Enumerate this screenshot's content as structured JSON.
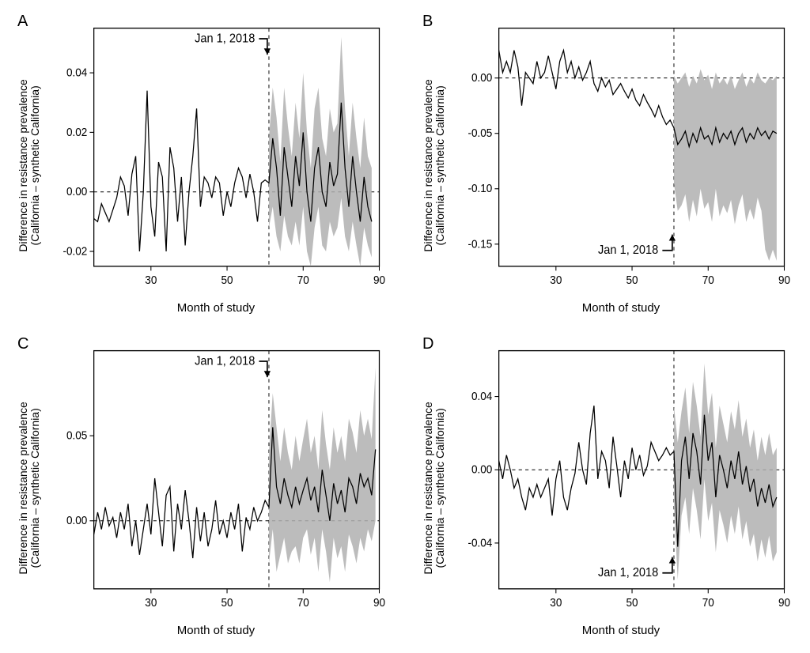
{
  "figure": {
    "background_color": "#ffffff",
    "panel_border_color": "#000000",
    "grid_dash": "4,4",
    "line_color": "#000000",
    "line_width": 1.2,
    "ci_fill": "#b0b0b0",
    "ci_opacity": 0.85,
    "vline_x": 61,
    "axis_fontsize": 13,
    "label_fontsize": 15,
    "panel_letter_fontsize": 20,
    "xlabel": "Month of study",
    "ylabel_line1": "Difference in resistance prevalence",
    "ylabel_line2": "(California – synthetic California)",
    "annotation_text": "Jan 1, 2018",
    "xlim": [
      15,
      90
    ],
    "xticks": [
      30,
      50,
      70,
      90
    ]
  },
  "panels": [
    {
      "letter": "A",
      "ylim": [
        -0.025,
        0.055
      ],
      "yticks": [
        -0.02,
        0.0,
        0.02,
        0.04
      ],
      "ytick_labels": [
        "-0.02",
        "0.00",
        "0.02",
        "0.04"
      ],
      "annotation_pos": "top",
      "line_x": [
        15,
        16,
        17,
        18,
        19,
        20,
        21,
        22,
        23,
        24,
        25,
        26,
        27,
        28,
        29,
        30,
        31,
        32,
        33,
        34,
        35,
        36,
        37,
        38,
        39,
        40,
        41,
        42,
        43,
        44,
        45,
        46,
        47,
        48,
        49,
        50,
        51,
        52,
        53,
        54,
        55,
        56,
        57,
        58,
        59,
        60,
        61,
        62,
        63,
        64,
        65,
        66,
        67,
        68,
        69,
        70,
        71,
        72,
        73,
        74,
        75,
        76,
        77,
        78,
        79,
        80,
        81,
        82,
        83,
        84,
        85,
        86,
        87,
        88
      ],
      "line_y": [
        -0.009,
        -0.01,
        -0.004,
        -0.007,
        -0.01,
        -0.006,
        -0.002,
        0.005,
        0.002,
        -0.008,
        0.006,
        0.012,
        -0.02,
        0.0,
        0.034,
        -0.005,
        -0.015,
        0.01,
        0.005,
        -0.02,
        0.015,
        0.008,
        -0.01,
        0.005,
        -0.018,
        0.0,
        0.012,
        0.028,
        -0.005,
        0.005,
        0.003,
        -0.002,
        0.005,
        0.003,
        -0.008,
        0.0,
        -0.005,
        0.003,
        0.008,
        0.005,
        -0.002,
        0.006,
        0.0,
        -0.01,
        0.003,
        0.004,
        0.003,
        0.018,
        0.008,
        -0.008,
        0.015,
        0.005,
        -0.005,
        0.012,
        0.002,
        0.02,
        0.0,
        -0.01,
        0.008,
        0.015,
        0.0,
        -0.005,
        0.01,
        0.002,
        0.006,
        0.03,
        0.008,
        -0.005,
        0.012,
        0.0,
        -0.01,
        0.005,
        -0.005,
        -0.01
      ],
      "ci_x": [
        61,
        62,
        63,
        64,
        65,
        66,
        67,
        68,
        69,
        70,
        71,
        72,
        73,
        74,
        75,
        76,
        77,
        78,
        79,
        80,
        81,
        82,
        83,
        84,
        85,
        86,
        87,
        88
      ],
      "ci_lo": [
        -0.012,
        -0.005,
        -0.015,
        -0.02,
        -0.008,
        -0.015,
        -0.018,
        -0.01,
        -0.018,
        -0.005,
        -0.02,
        -0.025,
        -0.012,
        -0.005,
        -0.018,
        -0.02,
        -0.01,
        -0.015,
        -0.012,
        -0.002,
        -0.015,
        -0.02,
        -0.01,
        -0.018,
        -0.025,
        -0.012,
        -0.018,
        -0.022
      ],
      "ci_hi": [
        0.018,
        0.035,
        0.025,
        0.01,
        0.035,
        0.022,
        0.012,
        0.03,
        0.018,
        0.04,
        0.02,
        0.008,
        0.028,
        0.035,
        0.018,
        0.012,
        0.028,
        0.02,
        0.023,
        0.052,
        0.028,
        0.012,
        0.03,
        0.018,
        0.008,
        0.025,
        0.012,
        0.008
      ]
    },
    {
      "letter": "B",
      "ylim": [
        -0.17,
        0.045
      ],
      "yticks": [
        -0.15,
        -0.1,
        -0.05,
        0.0
      ],
      "ytick_labels": [
        "-0.15",
        "-0.10",
        "-0.05",
        "0.00"
      ],
      "annotation_pos": "bottom",
      "line_x": [
        15,
        16,
        17,
        18,
        19,
        20,
        21,
        22,
        23,
        24,
        25,
        26,
        27,
        28,
        29,
        30,
        31,
        32,
        33,
        34,
        35,
        36,
        37,
        38,
        39,
        40,
        41,
        42,
        43,
        44,
        45,
        46,
        47,
        48,
        49,
        50,
        51,
        52,
        53,
        54,
        55,
        56,
        57,
        58,
        59,
        60,
        61,
        62,
        63,
        64,
        65,
        66,
        67,
        68,
        69,
        70,
        71,
        72,
        73,
        74,
        75,
        76,
        77,
        78,
        79,
        80,
        81,
        82,
        83,
        84,
        85,
        86,
        87,
        88
      ],
      "line_y": [
        0.025,
        0.005,
        0.015,
        0.005,
        0.025,
        0.01,
        -0.025,
        0.005,
        0.0,
        -0.005,
        0.015,
        0.0,
        0.005,
        0.02,
        0.005,
        -0.01,
        0.015,
        0.025,
        0.005,
        0.015,
        0.0,
        0.01,
        -0.002,
        0.005,
        0.015,
        -0.005,
        -0.012,
        0.0,
        -0.008,
        -0.002,
        -0.015,
        -0.01,
        -0.005,
        -0.012,
        -0.018,
        -0.01,
        -0.02,
        -0.025,
        -0.015,
        -0.022,
        -0.028,
        -0.035,
        -0.025,
        -0.035,
        -0.042,
        -0.038,
        -0.045,
        -0.06,
        -0.055,
        -0.048,
        -0.062,
        -0.05,
        -0.058,
        -0.045,
        -0.055,
        -0.052,
        -0.06,
        -0.045,
        -0.058,
        -0.05,
        -0.055,
        -0.048,
        -0.06,
        -0.05,
        -0.045,
        -0.058,
        -0.05,
        -0.055,
        -0.045,
        -0.052,
        -0.048,
        -0.055,
        -0.048,
        -0.05
      ],
      "ci_x": [
        61,
        62,
        63,
        64,
        65,
        66,
        67,
        68,
        69,
        70,
        71,
        72,
        73,
        74,
        75,
        76,
        77,
        78,
        79,
        80,
        81,
        82,
        83,
        84,
        85,
        86,
        87,
        88
      ],
      "ci_lo": [
        -0.095,
        -0.12,
        -0.115,
        -0.105,
        -0.13,
        -0.11,
        -0.125,
        -0.1,
        -0.118,
        -0.112,
        -0.13,
        -0.1,
        -0.125,
        -0.115,
        -0.122,
        -0.11,
        -0.132,
        -0.115,
        -0.105,
        -0.13,
        -0.118,
        -0.128,
        -0.108,
        -0.12,
        -0.155,
        -0.165,
        -0.155,
        -0.165
      ],
      "ci_hi": [
        0.002,
        -0.005,
        0.0,
        0.005,
        -0.008,
        0.002,
        -0.005,
        0.008,
        -0.002,
        0.003,
        -0.01,
        0.005,
        -0.005,
        0.0,
        -0.006,
        0.002,
        -0.01,
        -0.002,
        0.005,
        -0.008,
        0.0,
        -0.005,
        0.005,
        -0.002,
        -0.005,
        0.0,
        -0.002,
        0.002
      ]
    },
    {
      "letter": "C",
      "ylim": [
        -0.04,
        0.1
      ],
      "yticks": [
        0.0,
        0.05
      ],
      "ytick_labels": [
        "0.00",
        "0.05"
      ],
      "annotation_pos": "top",
      "line_x": [
        15,
        16,
        17,
        18,
        19,
        20,
        21,
        22,
        23,
        24,
        25,
        26,
        27,
        28,
        29,
        30,
        31,
        32,
        33,
        34,
        35,
        36,
        37,
        38,
        39,
        40,
        41,
        42,
        43,
        44,
        45,
        46,
        47,
        48,
        49,
        50,
        51,
        52,
        53,
        54,
        55,
        56,
        57,
        58,
        59,
        60,
        61,
        62,
        63,
        64,
        65,
        66,
        67,
        68,
        69,
        70,
        71,
        72,
        73,
        74,
        75,
        76,
        77,
        78,
        79,
        80,
        81,
        82,
        83,
        84,
        85,
        86,
        87,
        88,
        89
      ],
      "line_y": [
        -0.008,
        0.005,
        -0.005,
        0.008,
        -0.003,
        0.002,
        -0.01,
        0.005,
        -0.005,
        0.01,
        -0.015,
        0.0,
        -0.02,
        -0.005,
        0.01,
        -0.008,
        0.025,
        0.005,
        -0.015,
        0.015,
        0.02,
        -0.018,
        0.01,
        -0.005,
        0.018,
        0.0,
        -0.022,
        0.008,
        -0.012,
        0.005,
        -0.015,
        -0.005,
        0.012,
        -0.008,
        0.0,
        -0.01,
        0.005,
        -0.005,
        0.01,
        -0.018,
        0.002,
        -0.005,
        0.008,
        0.0,
        0.005,
        0.012,
        0.008,
        0.055,
        0.02,
        0.01,
        0.025,
        0.015,
        0.008,
        0.02,
        0.01,
        0.018,
        0.025,
        0.012,
        0.02,
        0.005,
        0.03,
        0.015,
        0.0,
        0.022,
        0.01,
        0.018,
        0.005,
        0.025,
        0.02,
        0.01,
        0.028,
        0.02,
        0.025,
        0.015,
        0.042
      ],
      "ci_x": [
        61,
        62,
        63,
        64,
        65,
        66,
        67,
        68,
        69,
        70,
        71,
        72,
        73,
        74,
        75,
        76,
        77,
        78,
        79,
        80,
        81,
        82,
        83,
        84,
        85,
        86,
        87,
        88,
        89
      ],
      "ci_lo": [
        -0.025,
        -0.005,
        -0.03,
        -0.02,
        -0.01,
        -0.025,
        -0.018,
        -0.015,
        -0.025,
        -0.01,
        -0.005,
        -0.02,
        -0.01,
        -0.03,
        -0.005,
        -0.018,
        -0.036,
        -0.01,
        -0.022,
        -0.015,
        -0.03,
        -0.008,
        -0.015,
        -0.025,
        -0.01,
        -0.018,
        -0.005,
        -0.012,
        0.0
      ],
      "ci_hi": [
        0.04,
        0.075,
        0.055,
        0.035,
        0.055,
        0.04,
        0.03,
        0.05,
        0.035,
        0.048,
        0.06,
        0.04,
        0.05,
        0.03,
        0.065,
        0.045,
        0.03,
        0.055,
        0.04,
        0.05,
        0.035,
        0.06,
        0.052,
        0.04,
        0.065,
        0.05,
        0.06,
        0.048,
        0.09
      ]
    },
    {
      "letter": "D",
      "ylim": [
        -0.065,
        0.065
      ],
      "yticks": [
        -0.04,
        0.0,
        0.04
      ],
      "ytick_labels": [
        "-0.04",
        "0.00",
        "0.04"
      ],
      "annotation_pos": "bottom",
      "line_x": [
        15,
        16,
        17,
        18,
        19,
        20,
        21,
        22,
        23,
        24,
        25,
        26,
        27,
        28,
        29,
        30,
        31,
        32,
        33,
        34,
        35,
        36,
        37,
        38,
        39,
        40,
        41,
        42,
        43,
        44,
        45,
        46,
        47,
        48,
        49,
        50,
        51,
        52,
        53,
        54,
        55,
        56,
        57,
        58,
        59,
        60,
        61,
        62,
        63,
        64,
        65,
        66,
        67,
        68,
        69,
        70,
        71,
        72,
        73,
        74,
        75,
        76,
        77,
        78,
        79,
        80,
        81,
        82,
        83,
        84,
        85,
        86,
        87,
        88
      ],
      "line_y": [
        0.005,
        -0.005,
        0.008,
        0.0,
        -0.01,
        -0.005,
        -0.015,
        -0.022,
        -0.01,
        -0.015,
        -0.008,
        -0.015,
        -0.01,
        -0.005,
        -0.025,
        -0.005,
        0.005,
        -0.015,
        -0.022,
        -0.01,
        -0.002,
        0.015,
        0.0,
        -0.008,
        0.02,
        0.035,
        -0.005,
        0.01,
        0.005,
        -0.01,
        0.018,
        0.002,
        -0.015,
        0.005,
        -0.005,
        0.012,
        0.0,
        0.008,
        -0.003,
        0.002,
        0.015,
        0.01,
        0.005,
        0.008,
        0.012,
        0.008,
        0.01,
        -0.042,
        0.005,
        0.018,
        -0.005,
        0.02,
        0.01,
        -0.008,
        0.03,
        0.005,
        0.015,
        -0.015,
        0.008,
        0.0,
        -0.01,
        0.005,
        -0.005,
        0.01,
        -0.008,
        0.002,
        -0.012,
        -0.005,
        -0.02,
        -0.01,
        -0.018,
        -0.008,
        -0.02,
        -0.015
      ],
      "ci_x": [
        61,
        62,
        63,
        64,
        65,
        66,
        67,
        68,
        69,
        70,
        71,
        72,
        73,
        74,
        75,
        76,
        77,
        78,
        79,
        80,
        81,
        82,
        83,
        84,
        85,
        86,
        87,
        88
      ],
      "ci_lo": [
        -0.02,
        -0.06,
        -0.025,
        -0.015,
        -0.035,
        -0.01,
        -0.022,
        -0.038,
        -0.005,
        -0.028,
        -0.018,
        -0.045,
        -0.022,
        -0.03,
        -0.04,
        -0.025,
        -0.035,
        -0.02,
        -0.038,
        -0.028,
        -0.042,
        -0.035,
        -0.05,
        -0.038,
        -0.048,
        -0.036,
        -0.05,
        -0.045
      ],
      "ci_hi": [
        0.035,
        0.015,
        0.032,
        0.045,
        0.02,
        0.048,
        0.035,
        0.018,
        0.058,
        0.03,
        0.042,
        0.012,
        0.035,
        0.025,
        0.015,
        0.032,
        0.022,
        0.038,
        0.018,
        0.028,
        0.012,
        0.022,
        0.005,
        0.018,
        0.008,
        0.02,
        0.008,
        0.012
      ]
    }
  ]
}
